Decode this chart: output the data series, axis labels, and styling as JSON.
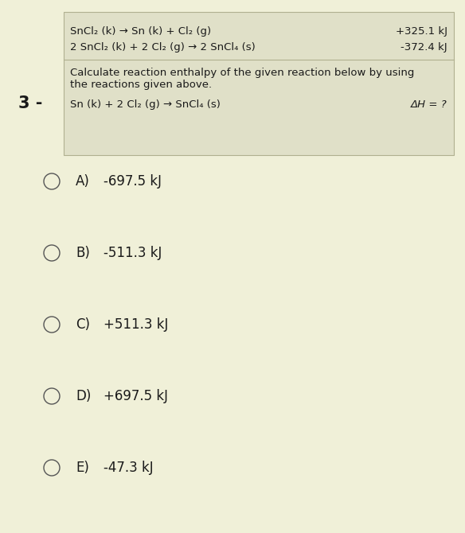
{
  "bg_color": "#f0f0d8",
  "box_color": "#e0e0c8",
  "question_number": "3 -",
  "reaction1_left": "SnCl₂ (k) → Sn (k) + Cl₂ (g)",
  "reaction1_right": "+325.1 kJ",
  "reaction2_left": "2 SnCl₂ (k) + 2 Cl₂ (g) → 2 SnCl₄ (s)",
  "reaction2_right": "-372.4 kJ",
  "question_text1": "Calculate reaction enthalpy of the given reaction below by using",
  "question_text2": "the reactions given above.",
  "target_reaction": "Sn (k) + 2 Cl₂ (g) → SnCl₄ (s)",
  "target_label": "ΔH = ?",
  "options": [
    {
      "label": "A)",
      "value": "-697.5 kJ"
    },
    {
      "label": "B)",
      "value": "-511.3 kJ"
    },
    {
      "label": "C)",
      "value": "+511.3 kJ"
    },
    {
      "label": "D)",
      "value": "+697.5 kJ"
    },
    {
      "label": "E)",
      "value": "-47.3 kJ"
    }
  ],
  "font_size_reactions": 9.5,
  "font_size_question": 9.5,
  "font_size_options": 12,
  "font_size_number": 15,
  "text_color": "#1a1a1a",
  "circle_color": "#555555",
  "box_edge_color": "#b0b090"
}
